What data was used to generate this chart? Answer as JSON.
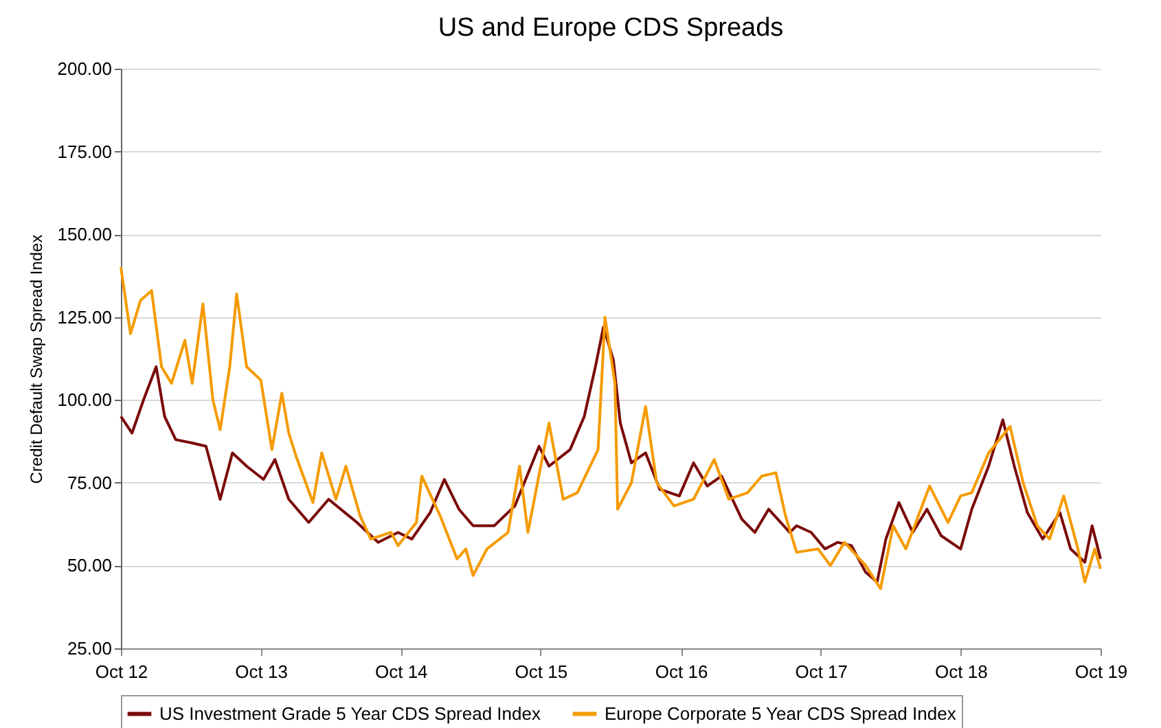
{
  "chart_data": {
    "type": "line",
    "title": "US and Europe CDS Spreads",
    "ylabel": "Credit Default Swap Spread Index",
    "xlim": [
      "2012-10",
      "2019-10"
    ],
    "xticks": [
      {
        "value": "2012-10",
        "label": "Oct 12"
      },
      {
        "value": "2013-10",
        "label": "Oct 13"
      },
      {
        "value": "2014-10",
        "label": "Oct 14"
      },
      {
        "value": "2015-10",
        "label": "Oct 15"
      },
      {
        "value": "2016-10",
        "label": "Oct 16"
      },
      {
        "value": "2017-10",
        "label": "Oct 17"
      },
      {
        "value": "2018-10",
        "label": "Oct 18"
      },
      {
        "value": "2019-10",
        "label": "Oct 19"
      }
    ],
    "ylim": [
      25,
      200
    ],
    "yticks": [
      {
        "value": 25,
        "label": "25.00"
      },
      {
        "value": 50,
        "label": "50.00"
      },
      {
        "value": 75,
        "label": "75.00"
      },
      {
        "value": 100,
        "label": "100.00"
      },
      {
        "value": 125,
        "label": "125.00"
      },
      {
        "value": 150,
        "label": "150.00"
      },
      {
        "value": 175,
        "label": "175.00"
      },
      {
        "value": 200,
        "label": "200.00"
      }
    ],
    "grid": "y",
    "legend": "bottom",
    "series": [
      {
        "name": "US Investment Grade 5 Year CDS Spread Index",
        "color": "#7b0a0a",
        "x": [
          "2012-10-01",
          "2012-10-30",
          "2012-11-29",
          "2013-01-01",
          "2013-01-23",
          "2013-02-21",
          "2013-04-05",
          "2013-05-11",
          "2013-06-17",
          "2013-07-19",
          "2013-08-25",
          "2013-10-08",
          "2013-11-07",
          "2013-12-13",
          "2014-02-03",
          "2014-03-27",
          "2014-06-09",
          "2014-08-03",
          "2014-09-24",
          "2014-10-30",
          "2014-12-17",
          "2015-01-23",
          "2015-03-02",
          "2015-04-08",
          "2015-06-02",
          "2015-07-26",
          "2015-09-27",
          "2015-10-23",
          "2015-12-17",
          "2016-01-23",
          "2016-02-21",
          "2016-03-13",
          "2016-04-08",
          "2016-04-26",
          "2016-05-25",
          "2016-07-01",
          "2016-08-07",
          "2016-09-27",
          "2016-11-03",
          "2016-12-09",
          "2017-01-15",
          "2017-03-09",
          "2017-04-12",
          "2017-05-18",
          "2017-07-12",
          "2017-07-30",
          "2017-09-06",
          "2017-10-12",
          "2017-11-14",
          "2017-12-20",
          "2018-01-26",
          "2018-02-25",
          "2018-03-20",
          "2018-04-23",
          "2018-05-29",
          "2018-07-05",
          "2018-08-11",
          "2018-10-01",
          "2018-10-30",
          "2018-12-13",
          "2019-01-19",
          "2019-02-18",
          "2019-03-24",
          "2019-05-03",
          "2019-06-17",
          "2019-07-15",
          "2019-08-21",
          "2019-09-09",
          "2019-10-01"
        ],
        "values": [
          95,
          90,
          100,
          110,
          95,
          88,
          87,
          86,
          70,
          84,
          80,
          76,
          82,
          70,
          63,
          70,
          63,
          57,
          60,
          58,
          66,
          76,
          67,
          62,
          62,
          68,
          86,
          80,
          85,
          95,
          110,
          122,
          112,
          93,
          81,
          84,
          73,
          71,
          81,
          74,
          77,
          64,
          60,
          67,
          60,
          62,
          60,
          55,
          57,
          56,
          48,
          45,
          58,
          69,
          60,
          67,
          59,
          55,
          67,
          80,
          94,
          80,
          66,
          58,
          66,
          55,
          51,
          62,
          52
        ]
      },
      {
        "name": "Europe Corporate 5 Year CDS Spread Index",
        "color": "#f59b00",
        "x": [
          "2012-10-01",
          "2012-10-26",
          "2012-11-21",
          "2012-12-20",
          "2013-01-15",
          "2013-02-10",
          "2013-03-17",
          "2013-04-05",
          "2013-05-03",
          "2013-05-29",
          "2013-06-17",
          "2013-07-12",
          "2013-07-30",
          "2013-08-25",
          "2013-10-01",
          "2013-10-30",
          "2013-11-25",
          "2013-12-13",
          "2014-01-01",
          "2014-02-14",
          "2014-03-09",
          "2014-04-15",
          "2014-05-11",
          "2014-06-17",
          "2014-07-15",
          "2014-09-06",
          "2014-09-24",
          "2014-11-11",
          "2014-11-25",
          "2015-01-12",
          "2015-02-25",
          "2015-03-20",
          "2015-04-08",
          "2015-05-14",
          "2015-07-08",
          "2015-08-07",
          "2015-08-29",
          "2015-10-23",
          "2015-11-29",
          "2016-01-05",
          "2016-02-28",
          "2016-03-17",
          "2016-04-12",
          "2016-04-19",
          "2016-05-25",
          "2016-07-01",
          "2016-07-30",
          "2016-09-13",
          "2016-11-03",
          "2016-12-27",
          "2017-02-03",
          "2017-03-24",
          "2017-04-30",
          "2017-06-06",
          "2017-07-01",
          "2017-07-30",
          "2017-09-24",
          "2017-10-26",
          "2017-12-02",
          "2018-01-26",
          "2018-03-06",
          "2018-04-08",
          "2018-05-11",
          "2018-07-12",
          "2018-08-29",
          "2018-10-01",
          "2018-10-30",
          "2018-12-13",
          "2019-02-07",
          "2019-03-13",
          "2019-04-19",
          "2019-05-21",
          "2019-06-27",
          "2019-08-03",
          "2019-08-21",
          "2019-09-16",
          "2019-10-01"
        ],
        "values": [
          140,
          120,
          130,
          133,
          110,
          105,
          118,
          105,
          129,
          100,
          91,
          110,
          132,
          110,
          106,
          85,
          102,
          90,
          83,
          69,
          84,
          70,
          80,
          65,
          58,
          60,
          56,
          63,
          77,
          65,
          52,
          55,
          47,
          55,
          60,
          80,
          60,
          93,
          70,
          72,
          85,
          125,
          105,
          67,
          75,
          98,
          75,
          68,
          70,
          82,
          70,
          72,
          77,
          78,
          65,
          54,
          55,
          50,
          57,
          50,
          43,
          62,
          55,
          74,
          63,
          71,
          72,
          84,
          92,
          75,
          62,
          58,
          71,
          55,
          45,
          55,
          49
        ]
      }
    ]
  }
}
